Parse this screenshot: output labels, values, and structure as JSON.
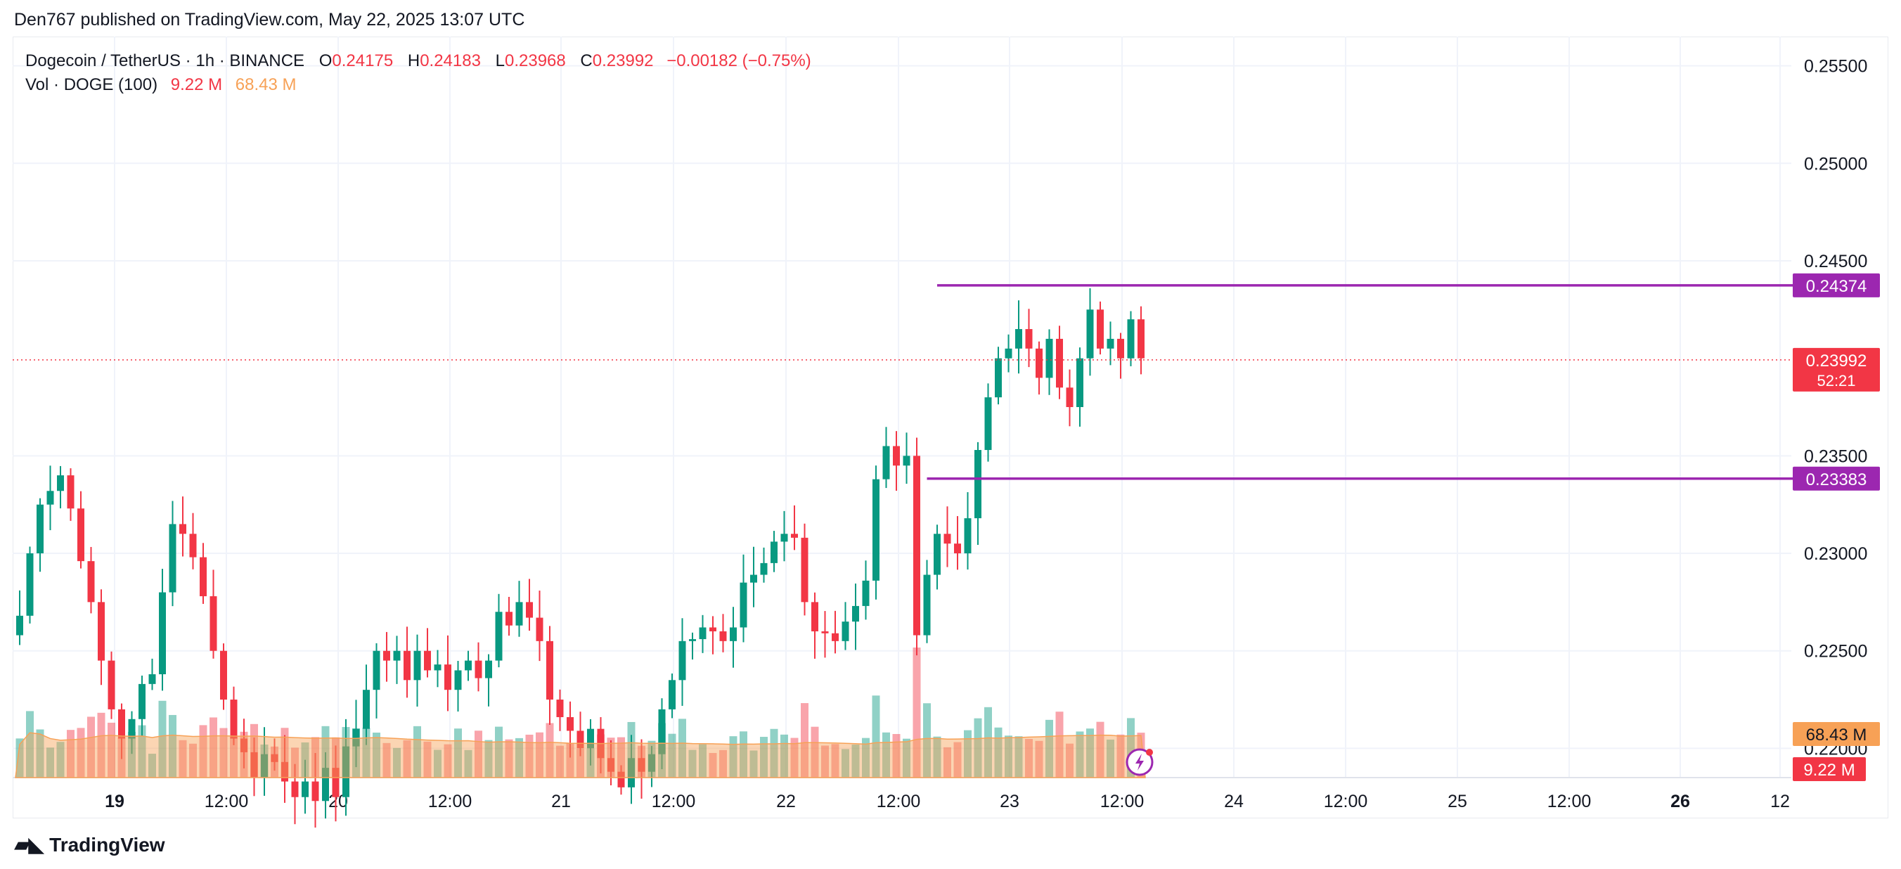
{
  "header": {
    "published": "Den767 published on TradingView.com, May 22, 2025 13:07 UTC"
  },
  "legend": {
    "symbol": "Dogecoin / TetherUS · 1h · BINANCE",
    "o_label": "O",
    "o_value": "0.24175",
    "h_label": "H",
    "h_value": "0.24183",
    "l_label": "L",
    "l_value": "0.23968",
    "c_label": "C",
    "c_value": "0.23992",
    "change": "−0.00182 (−0.75%)",
    "vol_label": "Vol · DOGE (100)",
    "vol_value": "9.22 M",
    "vol_ma_value": "68.43 M"
  },
  "footer": {
    "brand": "TradingView",
    "logo_icon": "tradingview-logo-icon"
  },
  "colors": {
    "up": "#089981",
    "down": "#f23645",
    "level": "#9c27b0",
    "vol_ma": "#f7a156"
  },
  "chart_data": {
    "type": "candlestick",
    "ylim": [
      0.2185,
      0.2565
    ],
    "y_ticks": [
      "0.25500",
      "0.25000",
      "0.24500",
      "0.23500",
      "0.23000",
      "0.22500",
      "0.22000"
    ],
    "x_ticks": [
      "19",
      "12:00",
      "20",
      "12:00",
      "21",
      "12:00",
      "22",
      "12:00",
      "23",
      "12:00",
      "24",
      "12:00",
      "25",
      "12:00",
      "26",
      "12"
    ],
    "x_ticks_bold": [
      "19",
      "26"
    ],
    "price_labels": [
      {
        "text": "0.24374",
        "value": 0.24374,
        "color": "#9c27b0"
      },
      {
        "text": "0.23992",
        "value": 0.23992,
        "color": "#f23645",
        "sub": "52:21"
      },
      {
        "text": "0.23383",
        "value": 0.23383,
        "color": "#9c27b0"
      }
    ],
    "volume_labels": [
      {
        "text": "68.43 M",
        "color": "#f7a156"
      },
      {
        "text": "9.22 M",
        "color": "#f23645"
      }
    ],
    "horizontal_levels": [
      {
        "value": 0.24374,
        "start_index": 90
      },
      {
        "value": 0.23383,
        "start_index": 89
      }
    ],
    "last_price": 0.23992,
    "closes": [
      0.2268,
      0.23,
      0.2325,
      0.2332,
      0.234,
      0.2323,
      0.2296,
      0.2275,
      0.2245,
      0.222,
      0.2205,
      0.2215,
      0.2233,
      0.2238,
      0.228,
      0.2315,
      0.231,
      0.2298,
      0.2278,
      0.225,
      0.2225,
      0.2205,
      0.2198,
      0.2185,
      0.2197,
      0.2193,
      0.2183,
      0.2175,
      0.2183,
      0.2173,
      0.219,
      0.2175,
      0.2201,
      0.221,
      0.223,
      0.225,
      0.2245,
      0.225,
      0.2235,
      0.225,
      0.224,
      0.2243,
      0.223,
      0.224,
      0.2245,
      0.2236,
      0.2245,
      0.227,
      0.2263,
      0.2275,
      0.2267,
      0.2255,
      0.2225,
      0.2216,
      0.2209,
      0.22,
      0.221,
      0.2195,
      0.2188,
      0.218,
      0.2195,
      0.2188,
      0.2197,
      0.222,
      0.2235,
      0.2255,
      0.2256,
      0.2262,
      0.226,
      0.2255,
      0.2262,
      0.2285,
      0.2289,
      0.2295,
      0.2306,
      0.231,
      0.2308,
      0.2275,
      0.226,
      0.2259,
      0.2255,
      0.2265,
      0.2273,
      0.2286,
      0.2338,
      0.2355,
      0.2345,
      0.235,
      0.2258,
      0.2289,
      0.231,
      0.2305,
      0.23,
      0.2318,
      0.2353,
      0.238,
      0.24,
      0.2405,
      0.2415,
      0.2405,
      0.239,
      0.241,
      0.2385,
      0.2375,
      0.24,
      0.2425,
      0.2405,
      0.241,
      0.24,
      0.242,
      0.24
    ]
  }
}
